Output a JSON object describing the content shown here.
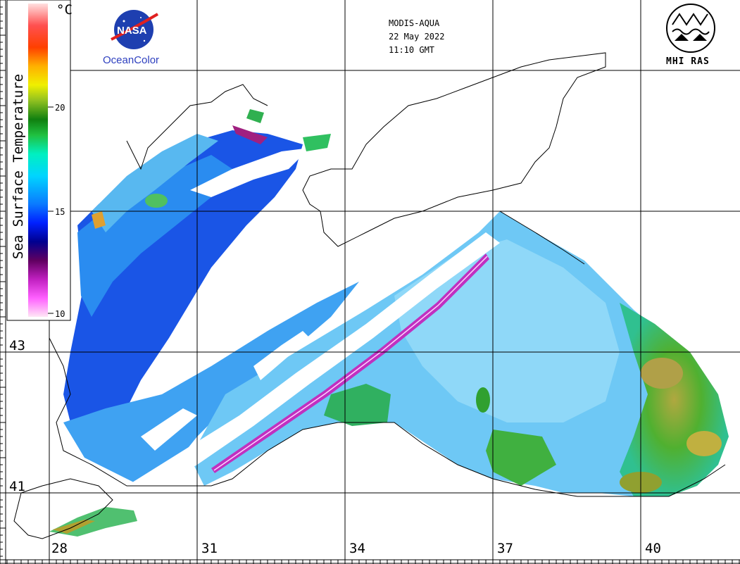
{
  "header": {
    "sensor": "MODIS-AQUA",
    "date": "22 May 2022",
    "time": "11:10 GMT"
  },
  "logos": {
    "left_org": "NASA",
    "left_caption": "OceanColor",
    "right_caption": "MHI RAS"
  },
  "colorbar": {
    "title": "Sea Surface Temperature",
    "unit": "°C",
    "ticks": [
      "20",
      "15",
      "10"
    ],
    "range": [
      10,
      25
    ],
    "colors": [
      "#ffe6f5",
      "#ff60ff",
      "#c020c0",
      "#600060",
      "#000090",
      "#0020ff",
      "#0a7aff",
      "#00d5ff",
      "#00f0c0",
      "#20c040",
      "#108010",
      "#90c020",
      "#f0f000",
      "#ffb000",
      "#ff4000",
      "#ff5050",
      "#ffe0e0"
    ]
  },
  "grid": {
    "lon_labels": [
      "28",
      "31",
      "34",
      "37",
      "40"
    ],
    "lat_labels": [
      "43",
      "41"
    ]
  }
}
